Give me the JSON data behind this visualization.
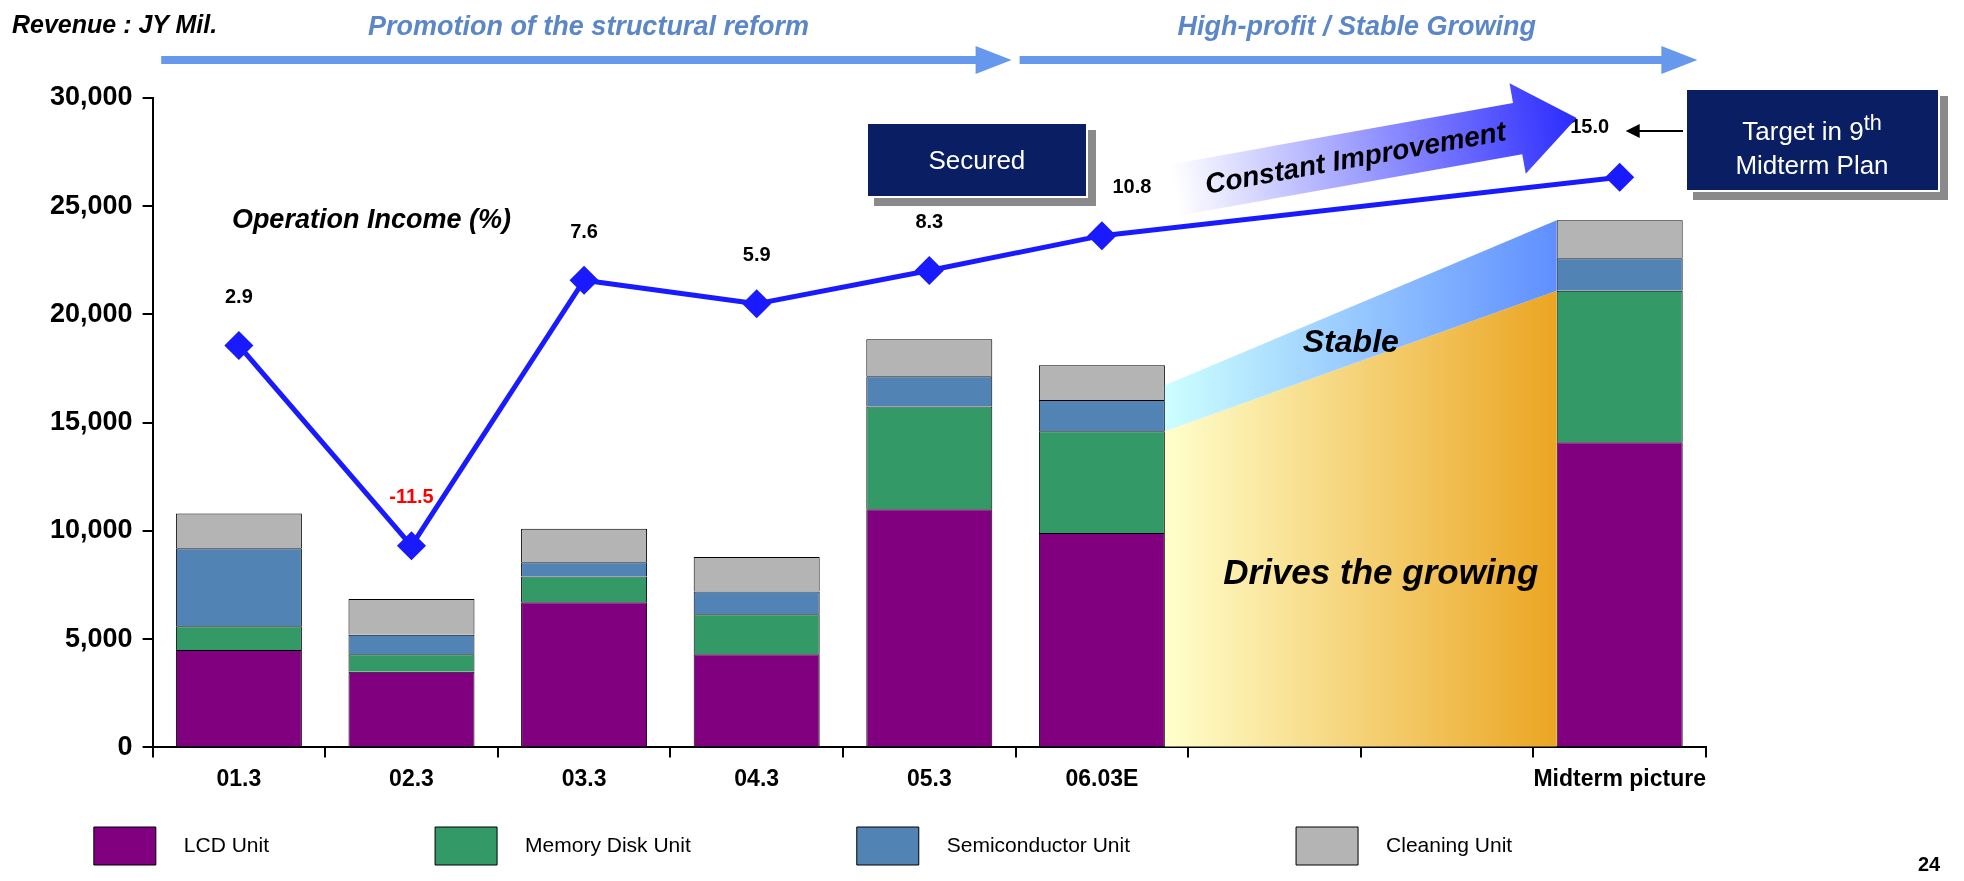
{
  "chart_data": {
    "type": "bar",
    "ylabel": "Revenue : JY Mil.",
    "categories": [
      "01.3",
      "02.3",
      "03.3",
      "04.3",
      "05.3",
      "06.03E",
      null,
      null,
      "Midterm picture"
    ],
    "stacked": true,
    "series": [
      {
        "name": "LCD Unit",
        "color": "#800080",
        "values": [
          4500,
          3500,
          6700,
          4300,
          11000,
          9900,
          null,
          null,
          14100
        ]
      },
      {
        "name": "Memory Disk Unit",
        "color": "#339966",
        "values": [
          1100,
          800,
          1200,
          1850,
          4750,
          4700,
          null,
          null,
          7000
        ]
      },
      {
        "name": "Semiconductor Unit",
        "color": "#5183b5",
        "values": [
          3600,
          900,
          650,
          1050,
          1400,
          1450,
          null,
          null,
          1500
        ]
      },
      {
        "name": "Cleaning Unit",
        "color": "#b4b4b4",
        "values": [
          1600,
          1650,
          1550,
          1600,
          1700,
          1600,
          null,
          null,
          1750
        ]
      },
      {
        "name": "Operation Income (%)",
        "type": "line",
        "axis": "y2",
        "color": "#1a1aff",
        "values": [
          2.9,
          -11.5,
          7.6,
          5.9,
          8.3,
          10.8,
          null,
          null,
          15.0
        ],
        "value_labels": [
          "2.9",
          "-11.5",
          "7.6",
          "5.9",
          "8.3",
          "10.8",
          null,
          null,
          "15.0"
        ]
      }
    ],
    "ylim": [
      0,
      30000
    ],
    "yticks": [
      {
        "value": 0,
        "label": "0"
      },
      {
        "value": 5000,
        "label": "5,000"
      },
      {
        "value": 10000,
        "label": "10,000"
      },
      {
        "value": 15000,
        "label": "15,000"
      },
      {
        "value": 20000,
        "label": "20,000"
      },
      {
        "value": 25000,
        "label": "25,000"
      },
      {
        "value": 30000,
        "label": "30,000"
      }
    ],
    "y2lim": [
      -26,
      20.7
    ],
    "marker": "diamond",
    "line_style": "solid",
    "grid": false,
    "legend": "bottom",
    "annotations": [
      "Promotion of the structural reform",
      "High-profit / Stable Growing",
      "Secured",
      "Target in 9$^{th}$ Midterm Plan",
      "Constant Improvement",
      "Stable",
      "Drives the growing",
      "24"
    ]
  }
}
